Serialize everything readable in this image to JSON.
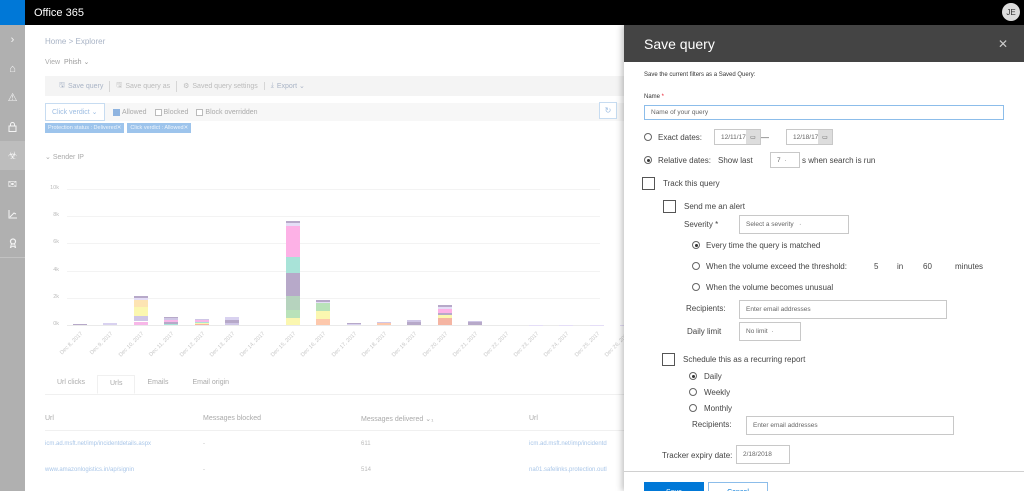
{
  "app": {
    "title": "Office 365",
    "user_initials": "JE"
  },
  "leftnav": {
    "items": [
      {
        "name": "expand",
        "glyph": "›"
      },
      {
        "name": "home",
        "glyph": "⌂"
      },
      {
        "name": "alerts",
        "glyph": "⚠"
      },
      {
        "name": "security",
        "glyph": "🔒︎"
      },
      {
        "name": "threat-management",
        "glyph": "☣"
      },
      {
        "name": "mail-flow",
        "glyph": "✉"
      },
      {
        "name": "reports",
        "glyph": "⟀"
      },
      {
        "name": "service-assurance",
        "glyph": "✪"
      }
    ]
  },
  "main": {
    "breadcrumb": [
      "Home",
      ">",
      "Explorer"
    ],
    "view": {
      "label": "View",
      "value": "Phish ⌄"
    },
    "toolbar": {
      "save_query": "Save query",
      "save_query_as": "Save query as",
      "saved_query_settings": "Saved query settings",
      "export": "Export ⌄"
    },
    "filters": {
      "dropdown": "Click verdict ⌄",
      "options": [
        {
          "label": "Allowed",
          "checked": true
        },
        {
          "label": "Blocked",
          "checked": false
        },
        {
          "label": "Block overridden",
          "checked": false
        }
      ],
      "chips": [
        "Protection status : Delivered✕",
        "Click verdict : Allowed✕"
      ]
    },
    "section_title": "Sender IP",
    "tabs": [
      {
        "label": "Url clicks",
        "active": false
      },
      {
        "label": "Urls",
        "active": true
      },
      {
        "label": "Emails",
        "active": false
      },
      {
        "label": "Email origin",
        "active": false
      }
    ],
    "table": {
      "headers": [
        "Url",
        "Messages blocked",
        "Messages delivered ⌄₁",
        "Url"
      ],
      "rows": [
        [
          "icm.ad.msft.net/imp/incidentdetails.aspx",
          "-",
          "611",
          "icm.ad.msft.net/imp/incidentd"
        ],
        [
          "www.amazonlogistics.in/ap/signin",
          "-",
          "514",
          "na01.safelinks.protection.outl"
        ]
      ]
    }
  },
  "chart_data": {
    "type": "bar",
    "stacked": true,
    "title": "Sender IP",
    "xlabel": "",
    "ylabel": "",
    "ylim": [
      0,
      10000
    ],
    "yticks": [
      "0k",
      "2k",
      "4k",
      "6k",
      "8k",
      "10k"
    ],
    "categories": [
      "Dec 8, 2017",
      "Dec 9, 2017",
      "Dec 10, 2017",
      "Dec 11, 2017",
      "Dec 12, 2017",
      "Dec 13, 2017",
      "Dec 14, 2017",
      "Dec 15, 2017",
      "Dec 16, 2017",
      "Dec 17, 2017",
      "Dec 18, 2017",
      "Dec 19, 2017",
      "Dec 20, 2017",
      "Dec 21, 2017",
      "Dec 22, 2017",
      "Dec 23, 2017",
      "Dec 24, 2017",
      "Dec 25, 2017",
      "Dec 26, 2017"
    ],
    "totals": [
      100,
      150,
      2200,
      600,
      450,
      580,
      0,
      7650,
      1850,
      150,
      250,
      400,
      1500,
      300,
      0,
      30,
      30,
      30,
      30
    ],
    "segments": [
      [
        {
          "c": "#b7a9c9",
          "v": 100
        }
      ],
      [
        {
          "c": "#d9d2f0",
          "v": 150
        }
      ],
      [
        {
          "c": "#f7b7e8",
          "v": 250
        },
        {
          "c": "#ffffff",
          "v": 50
        },
        {
          "c": "#cfc6e6",
          "v": 350
        },
        {
          "c": "#fbf7b0",
          "v": 650
        },
        {
          "c": "#fde4b3",
          "v": 550
        },
        {
          "c": "#e5def7",
          "v": 150
        },
        {
          "c": "#b7a9c9",
          "v": 100
        }
      ],
      [
        {
          "c": "#a8e3d8",
          "v": 100
        },
        {
          "c": "#b7a9c9",
          "v": 150
        },
        {
          "c": "#f7b7e8",
          "v": 100
        },
        {
          "c": "#cfc6e6",
          "v": 150
        },
        {
          "c": "#b7a9c9",
          "v": 100
        }
      ],
      [
        {
          "c": "#f5b5a3",
          "v": 80
        },
        {
          "c": "#fbf7b0",
          "v": 70
        },
        {
          "c": "#a8e3d8",
          "v": 100
        },
        {
          "c": "#f7b7e8",
          "v": 100
        },
        {
          "c": "#cfc6e6",
          "v": 100
        }
      ],
      [
        {
          "c": "#cfc6e6",
          "v": 150
        },
        {
          "c": "#b7a9c9",
          "v": 250
        },
        {
          "c": "#d9d2f0",
          "v": 180
        }
      ],
      [],
      [
        {
          "c": "#fbf7b0",
          "v": 550
        },
        {
          "c": "#b9e2b9",
          "v": 550
        },
        {
          "c": "#b6d3be",
          "v": 1050
        },
        {
          "c": "#b7a9c9",
          "v": 1700
        },
        {
          "c": "#a8e3d8",
          "v": 1150
        },
        {
          "c": "#fdb1e6",
          "v": 2250
        },
        {
          "c": "#e5def7",
          "v": 250
        },
        {
          "c": "#b7a9c9",
          "v": 150
        }
      ],
      [
        {
          "c": "#fdc8ac",
          "v": 450
        },
        {
          "c": "#fbf7b0",
          "v": 550
        },
        {
          "c": "#b9e2b9",
          "v": 600
        },
        {
          "c": "#e5def7",
          "v": 100
        },
        {
          "c": "#b7a9c9",
          "v": 150
        }
      ],
      [
        {
          "c": "#d9d2f0",
          "v": 100
        },
        {
          "c": "#b7a9c9",
          "v": 50
        }
      ],
      [
        {
          "c": "#fdc8ac",
          "v": 150
        },
        {
          "c": "#cfc6e6",
          "v": 100
        }
      ],
      [
        {
          "c": "#b7a9c9",
          "v": 200
        },
        {
          "c": "#cfc6e6",
          "v": 200
        }
      ],
      [
        {
          "c": "#f5b5a3",
          "v": 550
        },
        {
          "c": "#fbf7b0",
          "v": 150
        },
        {
          "c": "#b7a9c9",
          "v": 200
        },
        {
          "c": "#fdb1e6",
          "v": 250
        },
        {
          "c": "#e5def7",
          "v": 200
        },
        {
          "c": "#b7a9c9",
          "v": 150
        }
      ],
      [
        {
          "c": "#b7a9c9",
          "v": 200
        },
        {
          "c": "#cfc6e6",
          "v": 100
        }
      ],
      [],
      [
        {
          "c": "#e5def7",
          "v": 30
        }
      ],
      [
        {
          "c": "#e5def7",
          "v": 30
        }
      ],
      [
        {
          "c": "#e5def7",
          "v": 30
        }
      ],
      [
        {
          "c": "#e5def7",
          "v": 30
        }
      ]
    ]
  },
  "panel": {
    "title": "Save query",
    "close": "✕",
    "intro": "Save the current filters as a Saved Query:",
    "name_label": "Name",
    "name_placeholder": "Name of your query",
    "exact_dates_label": "Exact dates:",
    "exact_from": "12/11/17",
    "exact_dash": "—",
    "exact_to": "12/18/17",
    "relative_label": "Relative dates:",
    "show_last": "Show last",
    "relative_value": "7",
    "relative_suffix": "s when search is run",
    "track_label": "Track this query",
    "alert_label": "Send me an alert",
    "severity_label": "Severity",
    "severity_placeholder": "Select a severity",
    "alert_opt1": "Every time the query is matched",
    "alert_opt2": "When the volume exceed the threshold:",
    "threshold_count": "5",
    "threshold_in": "in",
    "threshold_minutes": "60",
    "threshold_unit": "minutes",
    "alert_opt3": "When the volume becomes unusual",
    "recipients_label": "Recipients:",
    "recipients_placeholder": "Enter email addresses",
    "daily_limit_label": "Daily limit",
    "daily_limit_value": "No limit",
    "schedule_label": "Schedule this as a recurring report",
    "freq_daily": "Daily",
    "freq_weekly": "Weekly",
    "freq_monthly": "Monthly",
    "recipients2_label": "Recipients:",
    "recipients2_placeholder": "Enter email addresses",
    "expiry_label": "Tracker expiry date:",
    "expiry_value": "2/18/2018",
    "save_button": "Save",
    "cancel_button": "Cancel"
  }
}
